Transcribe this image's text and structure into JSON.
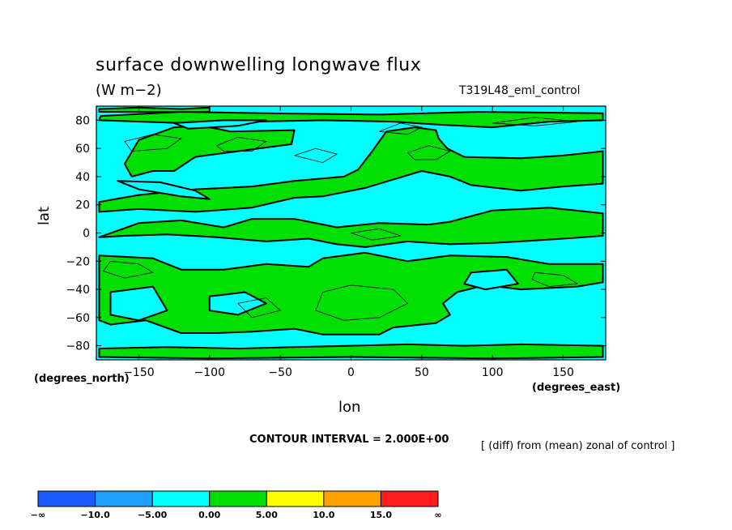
{
  "chart_data": {
    "type": "heatmap",
    "title": "surface downwelling longwave flux",
    "units": "(W m−2)",
    "run_label": "T319L48_eml_control",
    "xlabel": "lon",
    "ylabel": "lat",
    "x_unit_label": "(degrees_east)",
    "y_unit_label": "(degrees_north)",
    "xlim": [
      -180,
      180
    ],
    "ylim": [
      -90,
      90
    ],
    "x_ticks": [
      -150,
      -100,
      -50,
      0,
      50,
      100,
      150
    ],
    "x_tick_labels": [
      "−150",
      "−100",
      "−50",
      "0",
      "50",
      "100",
      "150"
    ],
    "y_ticks": [
      80,
      60,
      40,
      20,
      0,
      -20,
      -40,
      -60,
      -80
    ],
    "y_tick_labels": [
      "80",
      "60",
      "40",
      "20",
      "0",
      "−20",
      "−40",
      "−60",
      "−80"
    ],
    "contour_interval_text": "CONTOUR INTERVAL = 2.000E+00",
    "note": "[ (diff) from (mean) zonal of control ]",
    "colorbar": {
      "labels": [
        "−∞",
        "−10.0",
        "−5.00",
        "0.00",
        "5.00",
        "10.0",
        "15.0",
        "∞"
      ],
      "colors": [
        "#1c5cff",
        "#1ca0ff",
        "#00ffff",
        "#00e000",
        "#ffff00",
        "#ffa000",
        "#ff1c1c"
      ]
    },
    "background_color": "#00ffff",
    "positive_color": "#00e000",
    "positive_regions": [
      [
        [
          -177,
          83
        ],
        [
          -120,
          86
        ],
        [
          -60,
          85
        ],
        [
          20,
          84
        ],
        [
          90,
          86
        ],
        [
          178,
          85
        ],
        [
          178,
          80
        ],
        [
          140,
          79
        ],
        [
          100,
          75
        ],
        [
          60,
          77
        ],
        [
          30,
          79
        ],
        [
          -20,
          80
        ],
        [
          -70,
          79
        ],
        [
          -120,
          78
        ],
        [
          -178,
          80
        ]
      ],
      [
        [
          -178,
          88
        ],
        [
          -150,
          89
        ],
        [
          -120,
          88
        ],
        [
          -100,
          89
        ],
        [
          -100,
          86
        ],
        [
          -150,
          86
        ],
        [
          -178,
          86
        ]
      ],
      [
        [
          -160,
          49
        ],
        [
          -150,
          66
        ],
        [
          -125,
          75
        ],
        [
          -105,
          76
        ],
        [
          -85,
          72
        ],
        [
          -40,
          73
        ],
        [
          -42,
          63
        ],
        [
          -80,
          58
        ],
        [
          -110,
          54
        ],
        [
          -125,
          44
        ],
        [
          -140,
          44
        ],
        [
          -155,
          40
        ]
      ],
      [
        [
          -178,
          22
        ],
        [
          -150,
          27
        ],
        [
          -110,
          31
        ],
        [
          -70,
          33
        ],
        [
          -40,
          37
        ],
        [
          -5,
          40
        ],
        [
          5,
          45
        ],
        [
          15,
          58
        ],
        [
          25,
          72
        ],
        [
          45,
          75
        ],
        [
          60,
          73
        ],
        [
          62,
          67
        ],
        [
          68,
          60
        ],
        [
          80,
          54
        ],
        [
          120,
          53
        ],
        [
          150,
          55
        ],
        [
          178,
          58
        ],
        [
          178,
          35
        ],
        [
          150,
          33
        ],
        [
          120,
          30
        ],
        [
          85,
          34
        ],
        [
          70,
          40
        ],
        [
          50,
          44
        ],
        [
          30,
          38
        ],
        [
          10,
          32
        ],
        [
          -20,
          26
        ],
        [
          -40,
          25
        ],
        [
          -70,
          18
        ],
        [
          -110,
          15
        ],
        [
          -150,
          17
        ],
        [
          -178,
          15
        ]
      ],
      [
        [
          -178,
          -3
        ],
        [
          -150,
          7
        ],
        [
          -120,
          9
        ],
        [
          -90,
          4
        ],
        [
          -70,
          10
        ],
        [
          -40,
          10
        ],
        [
          -10,
          4
        ],
        [
          20,
          7
        ],
        [
          55,
          6
        ],
        [
          70,
          8
        ],
        [
          100,
          16
        ],
        [
          140,
          18
        ],
        [
          178,
          14
        ],
        [
          178,
          -2
        ],
        [
          150,
          -4
        ],
        [
          120,
          -6
        ],
        [
          100,
          -7
        ],
        [
          70,
          -8
        ],
        [
          40,
          -6
        ],
        [
          10,
          -10
        ],
        [
          -10,
          -8
        ],
        [
          -30,
          -4
        ],
        [
          -60,
          -6
        ],
        [
          -95,
          -3
        ],
        [
          -130,
          -1
        ],
        [
          -160,
          -2
        ]
      ],
      [
        [
          -178,
          -16
        ],
        [
          -140,
          -18
        ],
        [
          -120,
          -26
        ],
        [
          -90,
          -26
        ],
        [
          -60,
          -22
        ],
        [
          -30,
          -24
        ],
        [
          -20,
          -18
        ],
        [
          10,
          -14
        ],
        [
          40,
          -20
        ],
        [
          70,
          -16
        ],
        [
          110,
          -17
        ],
        [
          140,
          -22
        ],
        [
          178,
          -22
        ],
        [
          178,
          -35
        ],
        [
          160,
          -38
        ],
        [
          120,
          -40
        ],
        [
          95,
          -37
        ],
        [
          75,
          -42
        ],
        [
          65,
          -50
        ],
        [
          70,
          -58
        ],
        [
          60,
          -64
        ],
        [
          30,
          -67
        ],
        [
          20,
          -72
        ],
        [
          -20,
          -72
        ],
        [
          -40,
          -68
        ],
        [
          -70,
          -70
        ],
        [
          -95,
          -71
        ],
        [
          -120,
          -71
        ],
        [
          -145,
          -62
        ],
        [
          -170,
          -65
        ],
        [
          -178,
          -62
        ]
      ],
      [
        [
          -178,
          -82
        ],
        [
          -130,
          -81
        ],
        [
          -80,
          -82
        ],
        [
          -40,
          -81
        ],
        [
          0,
          -80
        ],
        [
          40,
          -79
        ],
        [
          80,
          -80
        ],
        [
          120,
          -79
        ],
        [
          178,
          -80
        ],
        [
          178,
          -88
        ],
        [
          100,
          -89
        ],
        [
          0,
          -88
        ],
        [
          -100,
          -89
        ],
        [
          -178,
          -88
        ]
      ]
    ],
    "cyan_regions": [
      [
        [
          -165,
          37
        ],
        [
          -150,
          31
        ],
        [
          -120,
          26
        ],
        [
          -100,
          24
        ],
        [
          -110,
          30
        ],
        [
          -135,
          36
        ]
      ],
      [
        [
          -170,
          -42
        ],
        [
          -140,
          -38
        ],
        [
          -130,
          -55
        ],
        [
          -150,
          -62
        ],
        [
          -170,
          -58
        ]
      ],
      [
        [
          -100,
          -45
        ],
        [
          -75,
          -42
        ],
        [
          -60,
          -50
        ],
        [
          -80,
          -58
        ],
        [
          -100,
          -55
        ]
      ],
      [
        [
          85,
          -28
        ],
        [
          110,
          -26
        ],
        [
          118,
          -36
        ],
        [
          95,
          -40
        ],
        [
          80,
          -36
        ]
      ],
      [
        [
          -125,
          78
        ],
        [
          -90,
          80
        ],
        [
          -60,
          80
        ],
        [
          -80,
          76
        ],
        [
          -115,
          74
        ]
      ]
    ],
    "contour_lines": [
      [
        [
          -160,
          65
        ],
        [
          -140,
          70
        ],
        [
          -120,
          67
        ],
        [
          -130,
          60
        ],
        [
          -155,
          58
        ],
        [
          -160,
          65
        ]
      ],
      [
        [
          -95,
          62
        ],
        [
          -80,
          68
        ],
        [
          -60,
          65
        ],
        [
          -70,
          58
        ],
        [
          -90,
          58
        ],
        [
          -95,
          62
        ]
      ],
      [
        [
          -40,
          55
        ],
        [
          -25,
          60
        ],
        [
          -10,
          56
        ],
        [
          -20,
          50
        ],
        [
          -40,
          55
        ]
      ],
      [
        [
          40,
          57
        ],
        [
          55,
          62
        ],
        [
          70,
          58
        ],
        [
          60,
          52
        ],
        [
          45,
          52
        ],
        [
          40,
          57
        ]
      ],
      [
        [
          -170,
          -20
        ],
        [
          -150,
          -22
        ],
        [
          -140,
          -28
        ],
        [
          -160,
          -32
        ],
        [
          -175,
          -27
        ],
        [
          -170,
          -20
        ]
      ],
      [
        [
          -20,
          -42
        ],
        [
          0,
          -37
        ],
        [
          30,
          -40
        ],
        [
          40,
          -50
        ],
        [
          20,
          -60
        ],
        [
          -5,
          -62
        ],
        [
          -25,
          -55
        ],
        [
          -20,
          -42
        ]
      ],
      [
        [
          -80,
          -50
        ],
        [
          -60,
          -46
        ],
        [
          -50,
          -55
        ],
        [
          -70,
          -60
        ],
        [
          -80,
          -50
        ]
      ],
      [
        [
          20,
          72
        ],
        [
          35,
          78
        ],
        [
          50,
          75
        ],
        [
          40,
          70
        ],
        [
          20,
          72
        ]
      ],
      [
        [
          100,
          78
        ],
        [
          130,
          82
        ],
        [
          160,
          79
        ],
        [
          130,
          76
        ],
        [
          100,
          78
        ]
      ],
      [
        [
          130,
          -28
        ],
        [
          150,
          -30
        ],
        [
          160,
          -36
        ],
        [
          140,
          -38
        ],
        [
          128,
          -33
        ],
        [
          130,
          -28
        ]
      ],
      [
        [
          0,
          0
        ],
        [
          20,
          3
        ],
        [
          35,
          -2
        ],
        [
          15,
          -5
        ],
        [
          0,
          0
        ]
      ]
    ]
  }
}
